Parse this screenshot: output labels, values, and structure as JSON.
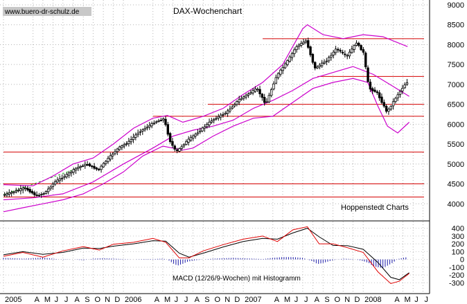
{
  "watermark": "www.buero-dr-schulz.de",
  "credit": "Hoppenstedt Charts",
  "chart_data": [
    {
      "type": "candlestick",
      "title": "DAX-Wochenchart",
      "ylim": [
        3500,
        9000
      ],
      "yticks": [
        4000,
        4500,
        5000,
        5500,
        6000,
        6500,
        7000,
        7500,
        8000,
        8500,
        9000
      ],
      "grid": true,
      "time_range": [
        "2005-01-01",
        "2008-06-30"
      ],
      "x_labels": [
        {
          "date": "2005-01-01",
          "label": "2005"
        },
        {
          "date": "2005-04-01",
          "label": "A"
        },
        {
          "date": "2005-05-01",
          "label": "M"
        },
        {
          "date": "2005-06-01",
          "label": "J"
        },
        {
          "date": "2005-07-01",
          "label": "J"
        },
        {
          "date": "2005-08-01",
          "label": "A"
        },
        {
          "date": "2005-09-01",
          "label": "S"
        },
        {
          "date": "2005-10-01",
          "label": "O"
        },
        {
          "date": "2005-11-01",
          "label": "N"
        },
        {
          "date": "2005-12-01",
          "label": "D"
        },
        {
          "date": "2006-01-01",
          "label": "2006"
        },
        {
          "date": "2006-04-01",
          "label": "A"
        },
        {
          "date": "2006-05-01",
          "label": "M"
        },
        {
          "date": "2006-06-01",
          "label": "J"
        },
        {
          "date": "2006-07-01",
          "label": "J"
        },
        {
          "date": "2006-08-01",
          "label": "A"
        },
        {
          "date": "2006-09-01",
          "label": "S"
        },
        {
          "date": "2006-10-01",
          "label": "O"
        },
        {
          "date": "2006-11-01",
          "label": "N"
        },
        {
          "date": "2006-12-01",
          "label": "D"
        },
        {
          "date": "2007-01-01",
          "label": "2007"
        },
        {
          "date": "2007-04-01",
          "label": "A"
        },
        {
          "date": "2007-05-01",
          "label": "M"
        },
        {
          "date": "2007-06-01",
          "label": "J"
        },
        {
          "date": "2007-07-01",
          "label": "J"
        },
        {
          "date": "2007-08-01",
          "label": "A"
        },
        {
          "date": "2007-09-01",
          "label": "S"
        },
        {
          "date": "2007-10-01",
          "label": "O"
        },
        {
          "date": "2007-11-01",
          "label": "N"
        },
        {
          "date": "2007-12-01",
          "label": "D"
        },
        {
          "date": "2008-01-01",
          "label": "2008"
        },
        {
          "date": "2008-04-01",
          "label": "A"
        },
        {
          "date": "2008-05-01",
          "label": "M"
        },
        {
          "date": "2008-06-01",
          "label": "J"
        },
        {
          "date": "2008-07-01",
          "label": "J"
        }
      ],
      "price_path": [
        [
          "2005-01-01",
          4210
        ],
        [
          "2005-02-15",
          4330
        ],
        [
          "2005-03-10",
          4400
        ],
        [
          "2005-04-15",
          4200
        ],
        [
          "2005-05-10",
          4270
        ],
        [
          "2005-06-10",
          4550
        ],
        [
          "2005-07-15",
          4720
        ],
        [
          "2005-08-15",
          4900
        ],
        [
          "2005-09-15",
          5000
        ],
        [
          "2005-10-20",
          4850
        ],
        [
          "2005-11-15",
          5100
        ],
        [
          "2005-12-20",
          5400
        ],
        [
          "2006-01-20",
          5550
        ],
        [
          "2006-02-20",
          5800
        ],
        [
          "2006-04-10",
          6050
        ],
        [
          "2006-05-08",
          6140
        ],
        [
          "2006-05-25",
          5600
        ],
        [
          "2006-06-14",
          5300
        ],
        [
          "2006-07-20",
          5600
        ],
        [
          "2006-08-20",
          5800
        ],
        [
          "2006-10-01",
          6100
        ],
        [
          "2006-11-15",
          6300
        ],
        [
          "2006-12-20",
          6600
        ],
        [
          "2007-02-15",
          6900
        ],
        [
          "2007-03-14",
          6500
        ],
        [
          "2007-04-15",
          7200
        ],
        [
          "2007-05-20",
          7600
        ],
        [
          "2007-06-15",
          7950
        ],
        [
          "2007-07-15",
          8100
        ],
        [
          "2007-08-10",
          7400
        ],
        [
          "2007-09-15",
          7600
        ],
        [
          "2007-10-15",
          7900
        ],
        [
          "2007-11-15",
          7700
        ],
        [
          "2007-12-15",
          8050
        ],
        [
          "2008-01-05",
          7800
        ],
        [
          "2008-01-22",
          6900
        ],
        [
          "2008-02-15",
          6800
        ],
        [
          "2008-03-17",
          6300
        ],
        [
          "2008-04-15",
          6700
        ],
        [
          "2008-05-15",
          7050
        ]
      ],
      "upper_band": [
        [
          "2005-01-01",
          4480
        ],
        [
          "2005-04-01",
          4450
        ],
        [
          "2005-06-01",
          4700
        ],
        [
          "2005-08-01",
          5000
        ],
        [
          "2005-10-01",
          5150
        ],
        [
          "2005-12-01",
          5500
        ],
        [
          "2006-02-01",
          5900
        ],
        [
          "2006-04-01",
          6150
        ],
        [
          "2006-05-15",
          6220
        ],
        [
          "2006-07-01",
          6050
        ],
        [
          "2006-09-01",
          6200
        ],
        [
          "2006-11-01",
          6400
        ],
        [
          "2007-01-01",
          6750
        ],
        [
          "2007-03-01",
          7050
        ],
        [
          "2007-05-01",
          7500
        ],
        [
          "2007-07-01",
          8400
        ],
        [
          "2007-07-15",
          8500
        ],
        [
          "2007-09-01",
          8250
        ],
        [
          "2007-11-01",
          8150
        ],
        [
          "2008-01-01",
          8250
        ],
        [
          "2008-03-01",
          8200
        ],
        [
          "2008-05-15",
          7950
        ]
      ],
      "moving_average": [
        [
          "2005-01-01",
          4100
        ],
        [
          "2005-04-01",
          4150
        ],
        [
          "2005-07-01",
          4250
        ],
        [
          "2005-10-01",
          4550
        ],
        [
          "2006-01-01",
          5000
        ],
        [
          "2006-04-01",
          5400
        ],
        [
          "2006-06-01",
          5700
        ],
        [
          "2006-08-01",
          5850
        ],
        [
          "2006-10-01",
          5950
        ],
        [
          "2006-12-01",
          6100
        ],
        [
          "2007-02-01",
          6400
        ],
        [
          "2007-04-01",
          6600
        ],
        [
          "2007-06-01",
          6850
        ],
        [
          "2007-08-01",
          7150
        ],
        [
          "2007-10-01",
          7300
        ],
        [
          "2007-12-01",
          7450
        ],
        [
          "2008-02-01",
          7250
        ],
        [
          "2008-04-01",
          6950
        ],
        [
          "2008-05-20",
          6700
        ]
      ],
      "lower_band": [
        [
          "2005-01-01",
          3800
        ],
        [
          "2005-03-01",
          3900
        ],
        [
          "2005-05-01",
          4000
        ],
        [
          "2005-07-01",
          4100
        ],
        [
          "2005-09-01",
          4250
        ],
        [
          "2005-11-01",
          4500
        ],
        [
          "2006-01-01",
          4800
        ],
        [
          "2006-03-01",
          5200
        ],
        [
          "2006-05-01",
          5450
        ],
        [
          "2006-07-01",
          5350
        ],
        [
          "2006-08-01",
          5400
        ],
        [
          "2006-10-01",
          5700
        ],
        [
          "2006-12-01",
          5950
        ],
        [
          "2007-02-01",
          6150
        ],
        [
          "2007-04-01",
          6200
        ],
        [
          "2007-06-01",
          6550
        ],
        [
          "2007-08-01",
          6900
        ],
        [
          "2007-10-01",
          7050
        ],
        [
          "2007-12-01",
          7150
        ],
        [
          "2008-01-15",
          7050
        ],
        [
          "2008-02-15",
          6450
        ],
        [
          "2008-03-15",
          5950
        ],
        [
          "2008-04-15",
          5780
        ],
        [
          "2008-05-20",
          6050
        ]
      ],
      "horizontal_lines": [
        {
          "value": 8150,
          "from": "2007-03-01"
        },
        {
          "value": 7200,
          "from": "2007-08-15"
        },
        {
          "value": 6500,
          "from": "2006-09-15"
        },
        {
          "value": 6200,
          "from": "2006-04-01"
        },
        {
          "value": 5300,
          "from": "2005-01-01"
        },
        {
          "value": 4500,
          "from": "2005-01-01"
        },
        {
          "value": 4170,
          "from": "2005-01-01"
        }
      ],
      "trend_line": {
        "from": [
          "2005-01-01",
          4230
        ],
        "to": [
          "2005-09-20",
          5000
        ]
      }
    },
    {
      "type": "line",
      "title": "MACD (12/26/9-Wochen) mit Histogramm",
      "ylim": [
        -350,
        450
      ],
      "yticks": [
        -300,
        -200,
        -100,
        0,
        100,
        200,
        300,
        400
      ],
      "series": [
        {
          "color": "#000000",
          "points": [
            [
              "2005-01-01",
              60
            ],
            [
              "2005-03-01",
              100
            ],
            [
              "2005-05-01",
              65
            ],
            [
              "2005-07-01",
              90
            ],
            [
              "2005-09-01",
              145
            ],
            [
              "2005-10-20",
              140
            ],
            [
              "2005-12-01",
              170
            ],
            [
              "2006-02-01",
              200
            ],
            [
              "2006-04-01",
              240
            ],
            [
              "2006-05-10",
              235
            ],
            [
              "2006-06-20",
              80
            ],
            [
              "2006-07-20",
              30
            ],
            [
              "2006-09-01",
              80
            ],
            [
              "2006-11-01",
              160
            ],
            [
              "2007-01-01",
              230
            ],
            [
              "2007-03-01",
              270
            ],
            [
              "2007-04-15",
              260
            ],
            [
              "2007-06-01",
              340
            ],
            [
              "2007-07-15",
              400
            ],
            [
              "2007-08-20",
              290
            ],
            [
              "2007-10-01",
              180
            ],
            [
              "2007-11-15",
              175
            ],
            [
              "2008-01-01",
              130
            ],
            [
              "2008-02-15",
              -40
            ],
            [
              "2008-03-25",
              -230
            ],
            [
              "2008-04-20",
              -260
            ],
            [
              "2008-05-20",
              -170
            ]
          ]
        },
        {
          "color": "#e00000",
          "points": [
            [
              "2005-01-01",
              40
            ],
            [
              "2005-03-01",
              90
            ],
            [
              "2005-05-01",
              30
            ],
            [
              "2005-07-01",
              110
            ],
            [
              "2005-09-01",
              165
            ],
            [
              "2005-10-20",
              120
            ],
            [
              "2005-12-01",
              195
            ],
            [
              "2006-02-01",
              220
            ],
            [
              "2006-04-01",
              270
            ],
            [
              "2006-05-10",
              220
            ],
            [
              "2006-06-20",
              20
            ],
            [
              "2006-07-20",
              20
            ],
            [
              "2006-09-01",
              110
            ],
            [
              "2006-11-01",
              190
            ],
            [
              "2007-01-01",
              260
            ],
            [
              "2007-03-01",
              300
            ],
            [
              "2007-04-15",
              230
            ],
            [
              "2007-06-01",
              380
            ],
            [
              "2007-07-15",
              420
            ],
            [
              "2007-08-20",
              200
            ],
            [
              "2007-10-01",
              200
            ],
            [
              "2007-11-15",
              150
            ],
            [
              "2008-01-01",
              90
            ],
            [
              "2008-02-15",
              -160
            ],
            [
              "2008-03-25",
              -310
            ],
            [
              "2008-04-20",
              -280
            ],
            [
              "2008-05-20",
              -180
            ]
          ]
        }
      ],
      "histogram": [
        [
          "2005-01-01",
          20
        ],
        [
          "2005-02-01",
          15
        ],
        [
          "2005-03-01",
          10
        ],
        [
          "2005-04-01",
          15
        ],
        [
          "2005-05-01",
          25
        ],
        [
          "2005-06-01",
          10
        ],
        [
          "2005-07-01",
          -5
        ],
        [
          "2005-08-01",
          0
        ],
        [
          "2005-09-01",
          -10
        ],
        [
          "2005-10-01",
          10
        ],
        [
          "2005-11-01",
          15
        ],
        [
          "2005-12-01",
          10
        ],
        [
          "2006-01-01",
          5
        ],
        [
          "2006-02-01",
          0
        ],
        [
          "2006-03-01",
          5
        ],
        [
          "2006-04-01",
          5
        ],
        [
          "2006-05-01",
          10
        ],
        [
          "2006-05-15",
          0
        ],
        [
          "2006-06-01",
          -50
        ],
        [
          "2006-06-15",
          -80
        ],
        [
          "2006-07-01",
          -55
        ],
        [
          "2006-07-15",
          -30
        ],
        [
          "2006-08-01",
          -15
        ],
        [
          "2006-09-01",
          0
        ],
        [
          "2006-10-01",
          10
        ],
        [
          "2006-11-01",
          15
        ],
        [
          "2006-12-01",
          20
        ],
        [
          "2007-01-01",
          15
        ],
        [
          "2007-02-01",
          10
        ],
        [
          "2007-03-01",
          5
        ],
        [
          "2007-04-01",
          20
        ],
        [
          "2007-05-01",
          30
        ],
        [
          "2007-06-01",
          30
        ],
        [
          "2007-07-01",
          20
        ],
        [
          "2007-08-01",
          -25
        ],
        [
          "2007-08-15",
          -60
        ],
        [
          "2007-09-01",
          -45
        ],
        [
          "2007-10-01",
          -10
        ],
        [
          "2007-11-01",
          10
        ],
        [
          "2007-12-01",
          5
        ],
        [
          "2008-01-01",
          -20
        ],
        [
          "2008-01-20",
          -50
        ],
        [
          "2008-02-01",
          -90
        ],
        [
          "2008-02-15",
          -100
        ],
        [
          "2008-03-01",
          -110
        ],
        [
          "2008-03-15",
          -80
        ],
        [
          "2008-04-01",
          -40
        ],
        [
          "2008-04-15",
          5
        ],
        [
          "2008-05-01",
          20
        ],
        [
          "2008-05-15",
          30
        ]
      ]
    }
  ]
}
